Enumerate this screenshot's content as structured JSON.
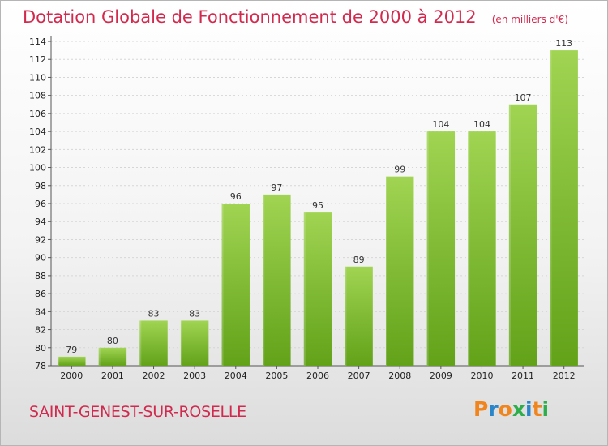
{
  "header": {
    "title": "Dotation Globale de Fonctionnement de 2000 à 2012",
    "unit_note": "(en milliers d'€)"
  },
  "footer": {
    "commune": "SAINT-GENEST-SUR-ROSELLE",
    "brand": "Proxiti",
    "brand_colors": [
      "#f0851e",
      "#2a86c9",
      "#f0851e",
      "#2eae4a",
      "#2a86c9",
      "#f0851e",
      "#2eae4a"
    ]
  },
  "colors": {
    "accent": "#d12a4e",
    "bar_top": "#a0d452",
    "bar_bottom": "#62a219"
  },
  "chart_data": {
    "type": "bar",
    "categories": [
      "2000",
      "2001",
      "2002",
      "2003",
      "2004",
      "2005",
      "2006",
      "2007",
      "2008",
      "2009",
      "2010",
      "2011",
      "2012"
    ],
    "values": [
      79,
      80,
      83,
      83,
      96,
      97,
      95,
      89,
      99,
      104,
      104,
      107,
      113
    ],
    "ylim": [
      78,
      114
    ],
    "yticks": [
      78,
      80,
      82,
      84,
      86,
      88,
      90,
      92,
      94,
      96,
      98,
      100,
      102,
      104,
      106,
      108,
      110,
      112,
      114
    ],
    "grid": true,
    "data_labels": true
  }
}
